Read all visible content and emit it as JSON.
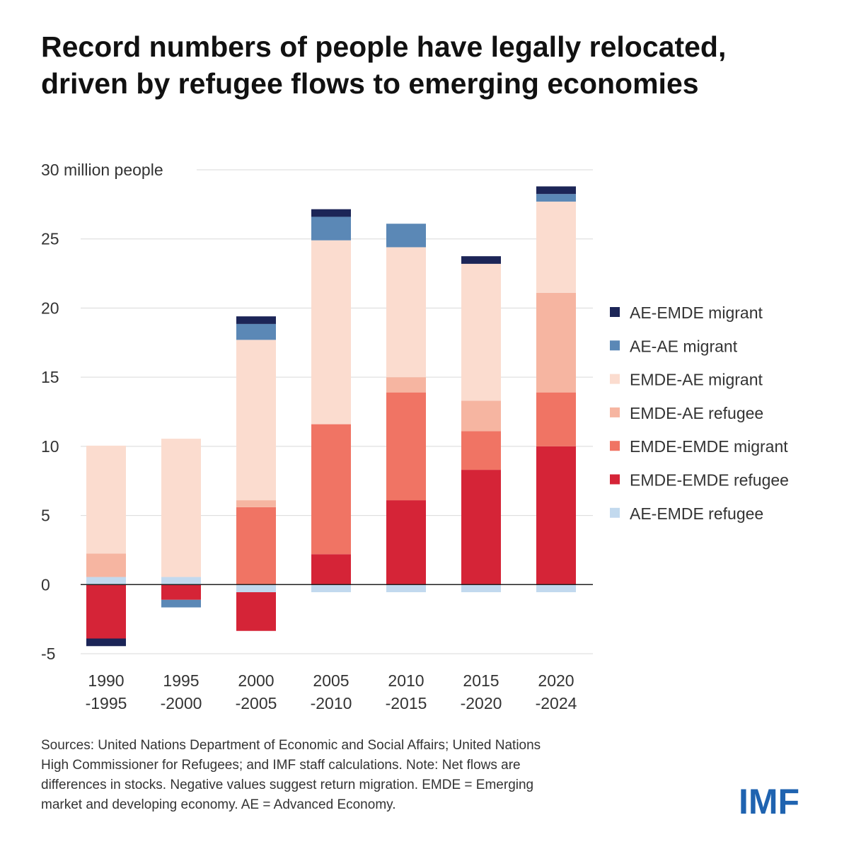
{
  "title_lines": [
    "Record numbers of people have legally relocated,",
    "driven by refugee flows to emerging economies"
  ],
  "notes_lines": [
    "Sources: United Nations Department of Economic and Social Affairs; United Nations",
    "High Commissioner for Refugees; and IMF staff calculations. Note: Net flows are",
    "differences in stocks. Negative values suggest return migration. EMDE = Emerging",
    "market and developing economy. AE = Advanced Economy."
  ],
  "logo": "IMF",
  "chart_data": {
    "type": "bar",
    "stacked": true,
    "ylabel": "30 million people",
    "ylim": [
      -5,
      30
    ],
    "yticks": [
      30,
      25,
      20,
      15,
      10,
      5,
      0,
      -5
    ],
    "ytick_labels": [
      "30 million people",
      "25",
      "20",
      "15",
      "10",
      "5",
      "0",
      "-5"
    ],
    "grid": true,
    "legend_position": "right",
    "categories": [
      [
        "1990",
        "-1995"
      ],
      [
        "1995",
        "-2000"
      ],
      [
        "2000",
        "-2005"
      ],
      [
        "2005",
        "-2010"
      ],
      [
        "2010",
        "-2015"
      ],
      [
        "2015",
        "-2020"
      ],
      [
        "2020",
        "-2024"
      ]
    ],
    "stack_order": [
      "AE-EMDE refugee",
      "EMDE-EMDE refugee",
      "EMDE-EMDE migrant",
      "EMDE-AE refugee",
      "EMDE-AE migrant",
      "AE-AE migrant",
      "AE-EMDE migrant"
    ],
    "series": [
      {
        "name": "AE-EMDE migrant",
        "color": "#1c2557",
        "values": [
          -0.55,
          0,
          0.55,
          0.55,
          0,
          0.55,
          0.55
        ]
      },
      {
        "name": "AE-AE migrant",
        "color": "#5b88b6",
        "values": [
          0,
          -0.55,
          1.15,
          1.7,
          1.7,
          0,
          0.55
        ]
      },
      {
        "name": "EMDE-AE migrant",
        "color": "#fbdccf",
        "values": [
          7.8,
          10.0,
          11.6,
          13.3,
          9.4,
          9.9,
          6.6
        ]
      },
      {
        "name": "EMDE-AE refugee",
        "color": "#f6b5a1",
        "values": [
          1.7,
          0,
          0.5,
          0,
          1.1,
          2.2,
          7.2
        ]
      },
      {
        "name": "EMDE-EMDE migrant",
        "color": "#f07464",
        "values": [
          0,
          0,
          5.6,
          9.4,
          7.8,
          2.8,
          3.9
        ]
      },
      {
        "name": "EMDE-EMDE refugee",
        "color": "#d52437",
        "values": [
          -3.9,
          -1.1,
          -2.8,
          2.2,
          6.1,
          8.3,
          10.0
        ]
      },
      {
        "name": "AE-EMDE refugee",
        "color": "#c2d9ee",
        "values": [
          0.55,
          0.55,
          -0.55,
          -0.55,
          -0.55,
          -0.55,
          -0.55
        ]
      }
    ]
  }
}
